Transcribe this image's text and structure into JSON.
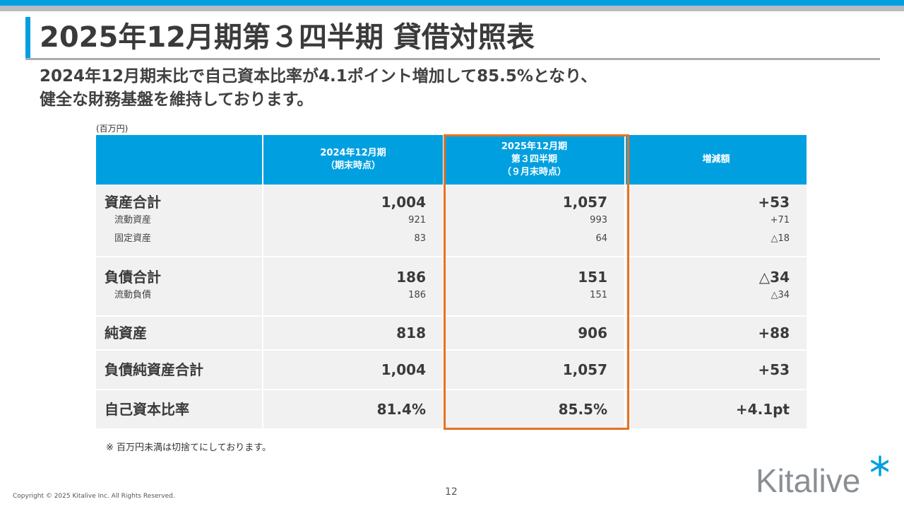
{
  "title": "2025年12月期第３四半期 貸借対照表",
  "subtitle": {
    "line1": "2024年12月期末比で自己資本比率が4.1ポイント増加して85.5%となり、",
    "line2": "健全な財務基盤を維持しております。"
  },
  "unit_label": "(百万円)",
  "table": {
    "headers": {
      "col1_line1": "2024年12月期",
      "col1_line2": "（期末時点）",
      "col2_line1": "2025年12月期",
      "col2_line2": "第３四半期",
      "col2_line3": "（９月末時点）",
      "col3": "増減額"
    },
    "total_assets": {
      "label": "資産合計",
      "prev": "1,004",
      "curr": "1,057",
      "diff": "+53"
    },
    "current_assets": {
      "label": "流動資産",
      "prev": "921",
      "curr": "993",
      "diff": "+71"
    },
    "fixed_assets": {
      "label": "固定資産",
      "prev": "83",
      "curr": "64",
      "diff": "△18"
    },
    "total_liabilities": {
      "label": "負債合計",
      "prev": "186",
      "curr": "151",
      "diff": "△34"
    },
    "current_liabilities": {
      "label": "流動負債",
      "prev": "186",
      "curr": "151",
      "diff": "△34"
    },
    "net_assets": {
      "label": "純資産",
      "prev": "818",
      "curr": "906",
      "diff": "+88"
    },
    "total_liab_net": {
      "label": "負債純資産合計",
      "prev": "1,004",
      "curr": "1,057",
      "diff": "+53"
    },
    "equity_ratio": {
      "label": "自己資本比率",
      "prev": "81.4%",
      "curr": "85.5%",
      "diff": "+4.1pt"
    }
  },
  "footnote": "※ 百万円未満は切捨てにしております。",
  "page_number": "12",
  "copyright": "Copyright © 2025 Kitalive Inc. All Rights Reserved.",
  "logo": {
    "text": "Kitalive",
    "color": "#8a8f94",
    "asterisk_color": "#00a0e0"
  },
  "colors": {
    "accent": "#00a0e0",
    "highlight": "#e8721d",
    "bar_gray": "#b8bcc0",
    "row_bg": "#f1f1f1"
  }
}
